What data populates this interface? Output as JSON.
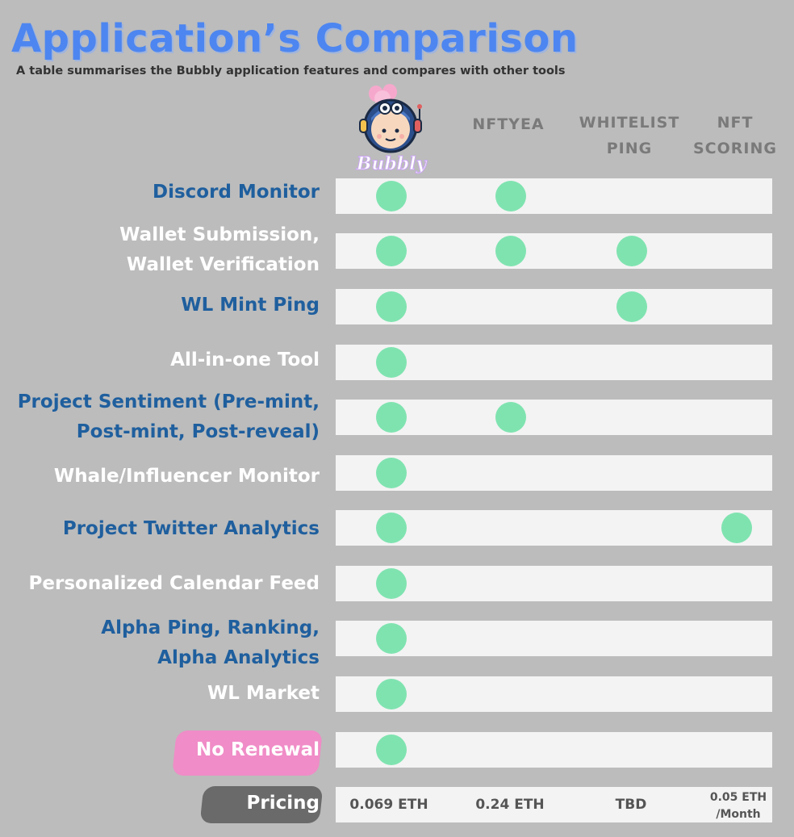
{
  "header": {
    "title": "Application’s Comparison",
    "subtitle": "A table summarises the Bubbly application features and compares with other tools"
  },
  "logo": {
    "name": "Bubbly",
    "icon": "bubbly-mascot-icon"
  },
  "columns": [
    {
      "label_line1": "",
      "label_line2": ""
    },
    {
      "label_line1": "NFTYEA",
      "label_line2": ""
    },
    {
      "label_line1": "WHITELIST",
      "label_line2": "PING"
    },
    {
      "label_line1": "NFT",
      "label_line2": "SCORING"
    }
  ],
  "rows": [
    {
      "line1": "Discord Monitor",
      "line2": "",
      "color": "blue",
      "checks": [
        true,
        true,
        false,
        false
      ]
    },
    {
      "line1": "Wallet Submission,",
      "line2": "Wallet Verification",
      "color": "white",
      "checks": [
        true,
        true,
        true,
        false
      ]
    },
    {
      "line1": "WL Mint Ping",
      "line2": "",
      "color": "blue",
      "checks": [
        true,
        false,
        true,
        false
      ]
    },
    {
      "line1": "All-in-one Tool",
      "line2": "",
      "color": "white",
      "checks": [
        true,
        false,
        false,
        false
      ]
    },
    {
      "line1": "Project Sentiment (Pre-mint,",
      "line2": "Post-mint, Post-reveal)",
      "color": "blue",
      "checks": [
        true,
        true,
        false,
        false
      ]
    },
    {
      "line1": "Whale/Influencer Monitor",
      "line2": "",
      "color": "white",
      "checks": [
        true,
        false,
        false,
        false
      ]
    },
    {
      "line1": "Project Twitter Analytics",
      "line2": "",
      "color": "blue",
      "checks": [
        true,
        false,
        false,
        true
      ]
    },
    {
      "line1": "Personalized Calendar Feed",
      "line2": "",
      "color": "white",
      "checks": [
        true,
        false,
        false,
        false
      ]
    },
    {
      "line1": "Alpha Ping, Ranking,",
      "line2": "Alpha Analytics",
      "color": "blue",
      "checks": [
        true,
        false,
        false,
        false
      ]
    },
    {
      "line1": "WL Market",
      "line2": "",
      "color": "white",
      "checks": [
        true,
        false,
        false,
        false
      ]
    },
    {
      "line1": "No Renewal",
      "line2": "",
      "color": "white",
      "checks": [
        true,
        false,
        false,
        false
      ]
    }
  ],
  "pricing": {
    "label": "Pricing",
    "values": [
      {
        "line1": "0.069 ETH",
        "line2": ""
      },
      {
        "line1": "0.24 ETH",
        "line2": ""
      },
      {
        "line1": "TBD",
        "line2": ""
      },
      {
        "line1": "0.05 ETH",
        "line2": "/Month"
      }
    ]
  },
  "colors": {
    "background": "#bcbcbc",
    "title": "#4d86f0",
    "label_blue": "#1f5f9e",
    "check_dot": "#7fe3b0",
    "row_bg": "#f3f3f3",
    "highlight_pink": "#f08cc7",
    "highlight_gray": "#6a6a6a"
  }
}
